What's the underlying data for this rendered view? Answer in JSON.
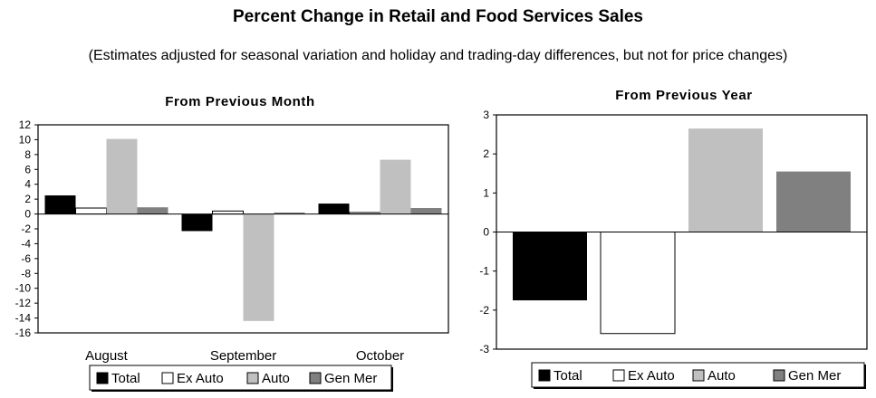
{
  "page": {
    "title": "Percent Change in Retail and Food Services Sales",
    "subtitle": "(Estimates adjusted for seasonal variation and holiday and trading-day differences, but not for price changes)"
  },
  "series_style": [
    {
      "name": "Total",
      "fill": "#000000"
    },
    {
      "name": "Ex Auto",
      "fill": "#ffffff"
    },
    {
      "name": "Auto",
      "fill": "#c0c0c0"
    },
    {
      "name": "Gen Mer",
      "fill": "#808080"
    }
  ],
  "chart_data": [
    {
      "type": "bar",
      "title": "From Previous Month",
      "xlabel": "",
      "ylabel": "",
      "categories": [
        "August",
        "September",
        "October"
      ],
      "ylim": [
        -16,
        12
      ],
      "yticks": [
        12,
        10,
        8,
        6,
        4,
        2,
        0,
        -2,
        -4,
        -6,
        -8,
        -10,
        -12,
        -14,
        -16
      ],
      "grid": false,
      "legend": "bottom",
      "series": [
        {
          "name": "Total",
          "values": [
            2.5,
            -2.3,
            1.4
          ]
        },
        {
          "name": "Ex Auto",
          "values": [
            0.8,
            0.4,
            0.2
          ]
        },
        {
          "name": "Auto",
          "values": [
            10.1,
            -14.4,
            7.3
          ]
        },
        {
          "name": "Gen Mer",
          "values": [
            0.9,
            0.2,
            0.8
          ]
        }
      ]
    },
    {
      "type": "bar",
      "title": "From Previous Year",
      "xlabel": "",
      "ylabel": "",
      "categories": [
        ""
      ],
      "ylim": [
        -3,
        3
      ],
      "yticks": [
        3,
        2,
        1,
        0,
        -1,
        -2,
        -3
      ],
      "grid": false,
      "legend": "bottom",
      "series": [
        {
          "name": "Total",
          "values": [
            -1.75
          ]
        },
        {
          "name": "Ex Auto",
          "values": [
            -2.6
          ]
        },
        {
          "name": "Auto",
          "values": [
            2.65
          ]
        },
        {
          "name": "Gen Mer",
          "values": [
            1.55
          ]
        }
      ]
    }
  ]
}
